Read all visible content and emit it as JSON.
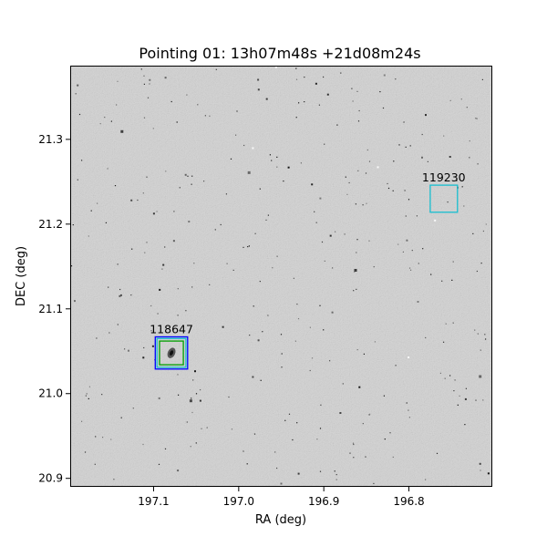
{
  "chart_data": {
    "type": "scatter",
    "title": "Pointing 01: 13h07m48s +21d08m24s",
    "xlabel": "RA (deg)",
    "ylabel": "DEC (deg)",
    "x_ticks": [
      "197.1",
      "197.0",
      "196.9",
      "196.8"
    ],
    "y_ticks": [
      "20.9",
      "21.0",
      "21.1",
      "21.2",
      "21.3"
    ],
    "x_tick_values": [
      197.1,
      197.0,
      196.9,
      196.8
    ],
    "y_tick_values": [
      20.9,
      21.0,
      21.1,
      21.2,
      21.3
    ],
    "xlim": [
      197.198,
      196.702
    ],
    "ylim": [
      20.89,
      21.387
    ],
    "x_inverted": true,
    "grid": false,
    "background": "grayscale sky image",
    "colors": {
      "image_bg": "#d3d3d3",
      "cyan": "#17becf",
      "blue": "#0000ff",
      "green": "#00a000"
    },
    "markers": [
      {
        "label": "119230",
        "ra": 196.759,
        "dec": 21.23,
        "boxes": [
          {
            "color": "#17becf",
            "half_size_deg": 0.016
          }
        ]
      },
      {
        "label": "118647",
        "ra": 197.079,
        "dec": 21.048,
        "boxes": [
          {
            "color": "#0000ff",
            "half_size_deg": 0.019
          },
          {
            "color": "#17becf",
            "half_size_deg": 0.017
          },
          {
            "color": "#00a000",
            "half_size_deg": 0.014
          }
        ]
      }
    ]
  }
}
